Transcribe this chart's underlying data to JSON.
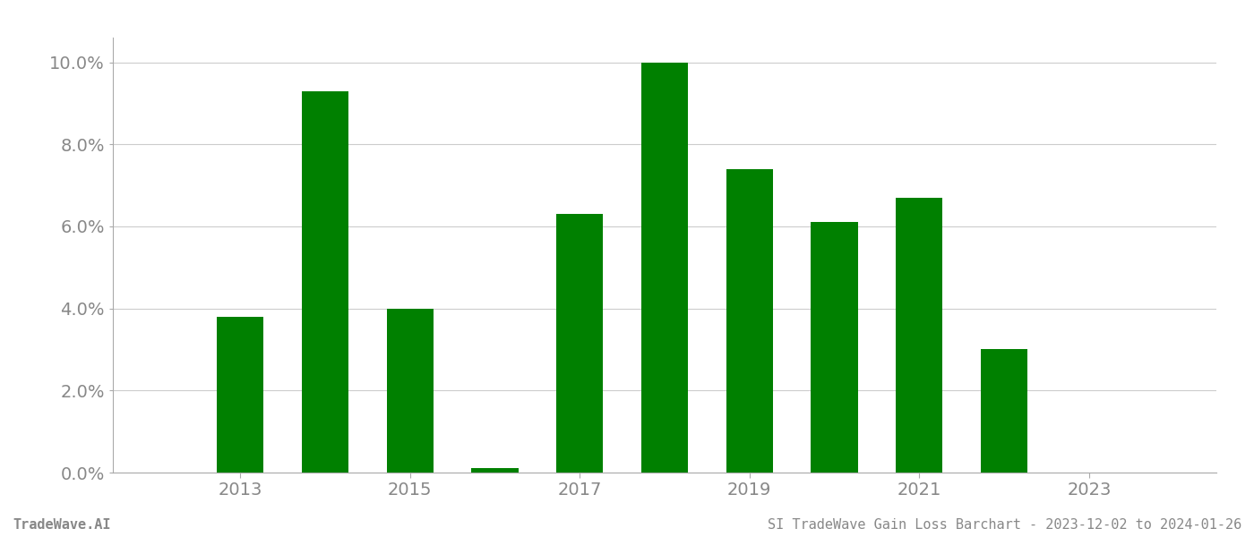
{
  "years": [
    2013,
    2014,
    2015,
    2016,
    2017,
    2018,
    2019,
    2020,
    2021,
    2022,
    2023
  ],
  "values": [
    0.038,
    0.093,
    0.04,
    0.001,
    0.063,
    0.1,
    0.074,
    0.061,
    0.067,
    0.03,
    0.0
  ],
  "bar_color": "#008000",
  "background_color": "#ffffff",
  "title": "SI TradeWave Gain Loss Barchart - 2023-12-02 to 2024-01-26",
  "watermark": "TradeWave.AI",
  "ylim": [
    0,
    0.106
  ],
  "yticks": [
    0.0,
    0.02,
    0.04,
    0.06,
    0.08,
    0.1
  ],
  "xtick_labels": [
    "2013",
    "2015",
    "2017",
    "2019",
    "2021",
    "2023"
  ],
  "xtick_positions": [
    2013,
    2015,
    2017,
    2019,
    2021,
    2023
  ],
  "grid_color": "#cccccc",
  "tick_label_color": "#888888",
  "footer_text_color": "#888888",
  "tick_fontsize": 14,
  "footer_fontsize": 11,
  "bar_width": 0.55
}
